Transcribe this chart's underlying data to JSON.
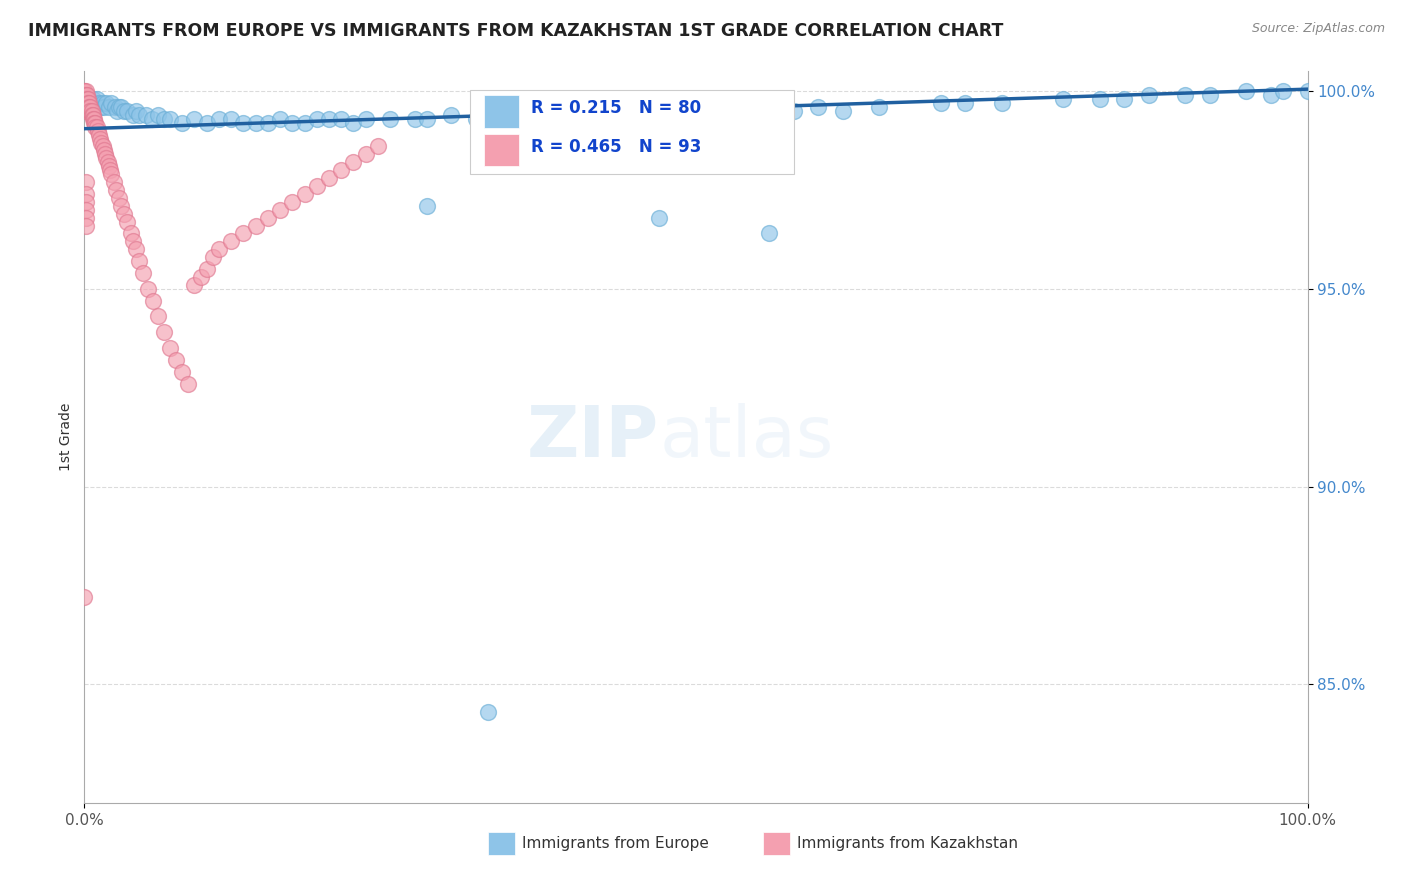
{
  "title": "IMMIGRANTS FROM EUROPE VS IMMIGRANTS FROM KAZAKHSTAN 1ST GRADE CORRELATION CHART",
  "source": "Source: ZipAtlas.com",
  "ylabel": "1st Grade",
  "legend_blue_r": "R = 0.215",
  "legend_blue_n": "N = 80",
  "legend_pink_r": "R = 0.465",
  "legend_pink_n": "N = 93",
  "blue_color": "#8ec4e8",
  "blue_edge": "#6aaed6",
  "pink_color": "#f4a0b0",
  "pink_edge": "#e07890",
  "trend_color": "#2060a0",
  "watermark_zip": "ZIP",
  "watermark_atlas": "atlas",
  "blue_scatter_x": [
    0.003,
    0.005,
    0.007,
    0.008,
    0.01,
    0.012,
    0.014,
    0.015,
    0.016,
    0.018,
    0.02,
    0.022,
    0.025,
    0.027,
    0.028,
    0.03,
    0.032,
    0.035,
    0.04,
    0.042,
    0.045,
    0.05,
    0.055,
    0.06,
    0.065,
    0.07,
    0.08,
    0.09,
    0.1,
    0.11,
    0.12,
    0.13,
    0.14,
    0.15,
    0.16,
    0.17,
    0.18,
    0.19,
    0.2,
    0.21,
    0.22,
    0.23,
    0.25,
    0.27,
    0.28,
    0.3,
    0.32,
    0.33,
    0.35,
    0.37,
    0.39,
    0.4,
    0.42,
    0.44,
    0.45,
    0.48,
    0.5,
    0.52,
    0.55,
    0.58,
    0.6,
    0.62,
    0.65,
    0.7,
    0.72,
    0.75,
    0.8,
    0.83,
    0.85,
    0.87,
    0.9,
    0.92,
    0.95,
    0.97,
    0.98,
    1.0,
    0.28,
    0.47,
    0.56,
    0.33
  ],
  "blue_scatter_y": [
    0.998,
    0.997,
    0.998,
    0.997,
    0.998,
    0.997,
    0.996,
    0.997,
    0.996,
    0.997,
    0.996,
    0.997,
    0.996,
    0.995,
    0.996,
    0.996,
    0.995,
    0.995,
    0.994,
    0.995,
    0.994,
    0.994,
    0.993,
    0.994,
    0.993,
    0.993,
    0.992,
    0.993,
    0.992,
    0.993,
    0.993,
    0.992,
    0.992,
    0.992,
    0.993,
    0.992,
    0.992,
    0.993,
    0.993,
    0.993,
    0.992,
    0.993,
    0.993,
    0.993,
    0.993,
    0.994,
    0.993,
    0.993,
    0.994,
    0.994,
    0.993,
    0.994,
    0.994,
    0.994,
    0.994,
    0.994,
    0.995,
    0.994,
    0.995,
    0.995,
    0.996,
    0.995,
    0.996,
    0.997,
    0.997,
    0.997,
    0.998,
    0.998,
    0.998,
    0.999,
    0.999,
    0.999,
    1.0,
    0.999,
    1.0,
    1.0,
    0.971,
    0.968,
    0.964,
    0.843
  ],
  "pink_scatter_x": [
    0.0,
    0.0,
    0.0,
    0.0,
    0.0,
    0.0,
    0.0,
    0.0,
    0.0,
    0.0,
    0.001,
    0.001,
    0.001,
    0.001,
    0.001,
    0.001,
    0.002,
    0.002,
    0.002,
    0.002,
    0.003,
    0.003,
    0.003,
    0.004,
    0.004,
    0.004,
    0.005,
    0.005,
    0.006,
    0.006,
    0.007,
    0.007,
    0.008,
    0.008,
    0.009,
    0.009,
    0.01,
    0.011,
    0.012,
    0.013,
    0.014,
    0.015,
    0.016,
    0.017,
    0.018,
    0.019,
    0.02,
    0.021,
    0.022,
    0.024,
    0.026,
    0.028,
    0.03,
    0.032,
    0.035,
    0.038,
    0.04,
    0.042,
    0.045,
    0.048,
    0.052,
    0.056,
    0.06,
    0.065,
    0.07,
    0.075,
    0.08,
    0.085,
    0.09,
    0.095,
    0.1,
    0.105,
    0.11,
    0.12,
    0.13,
    0.14,
    0.15,
    0.16,
    0.17,
    0.18,
    0.19,
    0.2,
    0.21,
    0.22,
    0.23,
    0.24,
    0.001,
    0.001,
    0.001,
    0.001,
    0.001,
    0.001,
    0.0
  ],
  "pink_scatter_y": [
    1.0,
    1.0,
    0.999,
    0.999,
    0.998,
    0.998,
    0.997,
    0.997,
    0.996,
    0.996,
    1.0,
    0.999,
    0.998,
    0.997,
    0.996,
    0.995,
    0.999,
    0.998,
    0.997,
    0.996,
    0.998,
    0.997,
    0.996,
    0.997,
    0.996,
    0.995,
    0.996,
    0.995,
    0.995,
    0.994,
    0.994,
    0.993,
    0.993,
    0.992,
    0.992,
    0.991,
    0.991,
    0.99,
    0.989,
    0.988,
    0.987,
    0.986,
    0.985,
    0.984,
    0.983,
    0.982,
    0.981,
    0.98,
    0.979,
    0.977,
    0.975,
    0.973,
    0.971,
    0.969,
    0.967,
    0.964,
    0.962,
    0.96,
    0.957,
    0.954,
    0.95,
    0.947,
    0.943,
    0.939,
    0.935,
    0.932,
    0.929,
    0.926,
    0.951,
    0.953,
    0.955,
    0.958,
    0.96,
    0.962,
    0.964,
    0.966,
    0.968,
    0.97,
    0.972,
    0.974,
    0.976,
    0.978,
    0.98,
    0.982,
    0.984,
    0.986,
    0.977,
    0.974,
    0.972,
    0.97,
    0.968,
    0.966,
    0.872
  ]
}
